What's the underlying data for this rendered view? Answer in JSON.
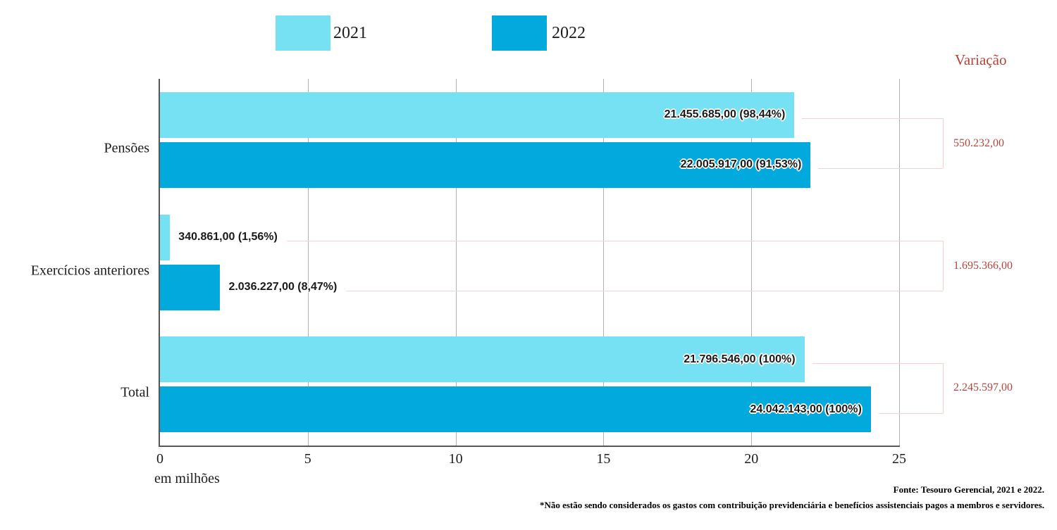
{
  "legend": {
    "items": [
      {
        "label": "2021",
        "color": "#76e1f2"
      },
      {
        "label": "2022",
        "color": "#01a9dc"
      }
    ]
  },
  "chart_data": {
    "type": "bar",
    "orientation": "horizontal",
    "title": "",
    "xlabel": "em milhões",
    "ylabel": "",
    "xlim": [
      0,
      25
    ],
    "xticks": [
      "0",
      "5",
      "10",
      "15",
      "20",
      "25"
    ],
    "grid": "vertical",
    "legend_position": "top",
    "categories": [
      "Pensões",
      "Exercícios anteriores",
      "Total"
    ],
    "series": [
      {
        "name": "2021",
        "color": "#76e1f2",
        "values": [
          21.455685,
          0.340861,
          21.796546
        ],
        "bar_labels": [
          "21.455.685,00 (98,44%)",
          "340.861,00 (1,56%)",
          "21.796.546,00 (100%)"
        ]
      },
      {
        "name": "2022",
        "color": "#01a9dc",
        "values": [
          22.005917,
          2.036227,
          24.042143
        ],
        "bar_labels": [
          "22.005.917,00 (91,53%)",
          "2.036.227,00 (8,47%)",
          "24.042.143,00 (100%)"
        ]
      }
    ],
    "variation": {
      "title": "Variação",
      "color": "#b5443c",
      "values": [
        "550.232,00",
        "1.695.366,00",
        "2.245.597,00"
      ]
    }
  },
  "footer": {
    "source": "Fonte: Tesouro Gerencial, 2021 e 2022.",
    "note": "*Não estão sendo considerados os gastos com contribuição previdenciária e benefícios assistenciais pagos a membros e servidores."
  }
}
